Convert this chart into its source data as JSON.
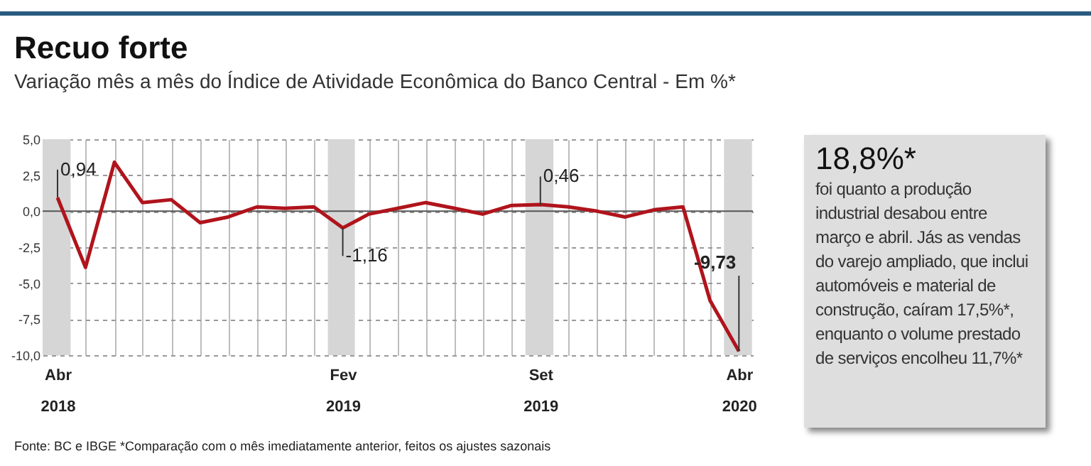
{
  "chart_data": [
    {
      "type": "line",
      "title": "Recuo forte",
      "subtitle": "Variação mês a mês do Índice de Atividade Econômica do Banco Central - Em %*",
      "x": [
        "2018-04",
        "2018-05",
        "2018-06",
        "2018-07",
        "2018-08",
        "2018-09",
        "2018-10",
        "2018-11",
        "2018-12",
        "2019-01",
        "2019-02",
        "2019-03",
        "2019-04",
        "2019-05",
        "2019-06",
        "2019-07",
        "2019-08",
        "2019-09",
        "2019-10",
        "2019-11",
        "2019-12",
        "2020-01",
        "2020-02",
        "2020-03",
        "2020-04"
      ],
      "series": [
        {
          "color": "#b0141c",
          "values": [
            0.94,
            -3.9,
            3.4,
            0.6,
            0.8,
            -0.8,
            -0.4,
            0.3,
            0.2,
            0.3,
            -1.16,
            -0.2,
            0.2,
            0.6,
            0.2,
            -0.2,
            0.4,
            0.46,
            0.3,
            0,
            -0.4,
            0.1,
            0.3,
            -6.2,
            -9.73
          ],
          "value_labels": [
            "0,94",
            null,
            null,
            null,
            null,
            null,
            null,
            null,
            null,
            null,
            "-1,16",
            null,
            null,
            null,
            null,
            null,
            null,
            "0,46",
            null,
            null,
            null,
            null,
            null,
            null,
            "-9,73"
          ]
        }
      ],
      "xlim": [
        "2018-03-16",
        "2020-04-16"
      ],
      "xticks": [
        {
          "value": "2018-04",
          "label": "Abr 2018"
        },
        {
          "value": "2018-05",
          "label": null
        },
        {
          "value": "2018-06",
          "label": null
        },
        {
          "value": "2018-07",
          "label": null
        },
        {
          "value": "2018-08",
          "label": null
        },
        {
          "value": "2018-09",
          "label": null
        },
        {
          "value": "2018-10",
          "label": null
        },
        {
          "value": "2018-11",
          "label": null
        },
        {
          "value": "2018-12",
          "label": null
        },
        {
          "value": "2019-01",
          "label": null
        },
        {
          "value": "2019-02",
          "label": "Fev 2019"
        },
        {
          "value": "2019-03",
          "label": null
        },
        {
          "value": "2019-04",
          "label": null
        },
        {
          "value": "2019-05",
          "label": null
        },
        {
          "value": "2019-06",
          "label": null
        },
        {
          "value": "2019-07",
          "label": null
        },
        {
          "value": "2019-08",
          "label": null
        },
        {
          "value": "2019-09",
          "label": "Set 2019"
        },
        {
          "value": "2019-10",
          "label": null
        },
        {
          "value": "2019-11",
          "label": null
        },
        {
          "value": "2019-12",
          "label": null
        },
        {
          "value": "2020-01",
          "label": null
        },
        {
          "value": "2020-02",
          "label": null
        },
        {
          "value": "2020-03",
          "label": null
        },
        {
          "value": "2020-04",
          "label": "Abr 2020"
        }
      ],
      "ylim": [
        -10,
        5
      ],
      "yticks": [
        {
          "value": 5,
          "label": "5,0"
        },
        {
          "value": 2.5,
          "label": "2,5"
        },
        {
          "value": 0,
          "label": "0,0"
        },
        {
          "value": -2.5,
          "label": "-2,5"
        },
        {
          "value": -5,
          "label": "-5,0"
        },
        {
          "value": -7.5,
          "label": "-7,5"
        },
        {
          "value": -10,
          "label": "-10,0"
        }
      ],
      "grid": true,
      "marker": "none",
      "line_style": "solid",
      "ref_lines": [
        {
          "axis": "y",
          "value": 0,
          "color": "#555555"
        }
      ],
      "bands": [
        {
          "axis": "x",
          "from": "2018-03-16",
          "to": "2018-04-15",
          "color": "#d6d6d6"
        },
        {
          "axis": "x",
          "from": "2019-01-16",
          "to": "2019-02-14",
          "color": "#d6d6d6"
        },
        {
          "axis": "x",
          "from": "2019-08-16",
          "to": "2019-09-15",
          "color": "#d6d6d6"
        },
        {
          "axis": "x",
          "from": "2020-03-16",
          "to": "2020-04-15",
          "color": "#d6d6d6"
        }
      ],
      "annotations": [
        "Fonte: BC e IBGE *Comparação com o mês imediatamente anterior, feitos os ajustes sazonais"
      ]
    },
    {
      "type": "other",
      "title": "18,8%*",
      "annotations": [
        "foi quanto a produção industrial desabou entre março e abril. Jás as vendas do varejo ampliado, que inclui automóveis e material de construção, caíram 17,5%*, enquanto o volume prestado de serviços encolheu 11,7%*"
      ]
    }
  ]
}
